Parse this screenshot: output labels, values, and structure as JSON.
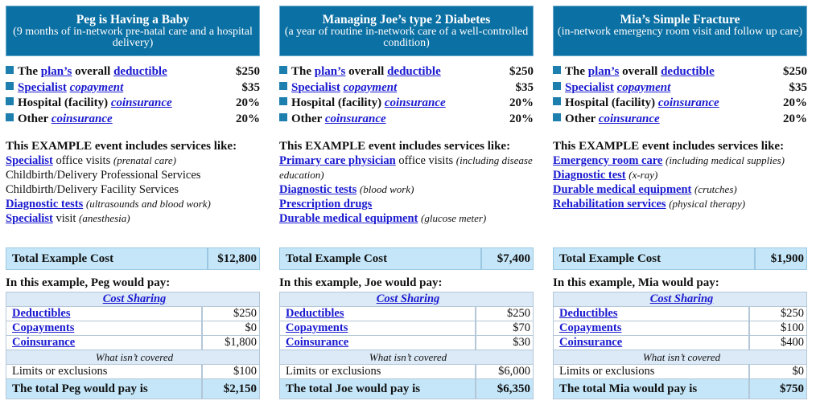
{
  "colors": {
    "header": "#0b70a3",
    "total_bg": "#c4e6f8",
    "subheader_bg": "#dce9f6",
    "link": "#1a1ad0"
  },
  "columns": [
    {
      "title": "Peg is Having a Baby",
      "subtitle": "(9 months of in-network pre-natal care and a hospital delivery)",
      "plan": {
        "deductible": "$250",
        "specialist_copay": "$35",
        "hospital_coins": "20%",
        "other_coins": "20%"
      },
      "services": [
        {
          "link": "Specialist",
          "text": " office visits ",
          "note": "(prenatal care)"
        },
        {
          "link": "",
          "text": "Childbirth/Delivery Professional Services",
          "note": ""
        },
        {
          "link": "",
          "text": "Childbirth/Delivery Facility Services",
          "note": ""
        },
        {
          "link": "Diagnostic tests",
          "text": " ",
          "note": "(ultrasounds and blood work)"
        },
        {
          "link": "Specialist",
          "text": " visit ",
          "note": "(anesthesia)"
        }
      ],
      "total_cost": "$12,800",
      "pay_heading": "In this example, Peg would pay:",
      "deductibles": "$250",
      "copayments": "$0",
      "coinsurance": "$1,800",
      "limits": "$100",
      "total_label": "The total Peg would pay is",
      "total_pay": "$2,150"
    },
    {
      "title": "Managing Joe’s type 2 Diabetes",
      "subtitle": "(a year of routine in-network care of a well-controlled condition)",
      "plan": {
        "deductible": "$250",
        "specialist_copay": "$35",
        "hospital_coins": "20%",
        "other_coins": "20%"
      },
      "services": [
        {
          "link": "Primary care physician",
          "text": " office visits ",
          "note": "(including disease education)"
        },
        {
          "link": "Diagnostic tests",
          "text": " ",
          "note": "(blood work)"
        },
        {
          "link": "Prescription drugs",
          "text": "",
          "note": ""
        },
        {
          "link": "Durable medical equipment",
          "text": " ",
          "note": "(glucose meter)"
        }
      ],
      "total_cost": "$7,400",
      "pay_heading": "In this example, Joe would pay:",
      "deductibles": "$250",
      "copayments": "$70",
      "coinsurance": "$30",
      "limits": "$6,000",
      "total_label": "The total Joe would pay is",
      "total_pay": "$6,350"
    },
    {
      "title": "Mia’s Simple Fracture",
      "subtitle": "(in-network emergency room visit and follow up care)",
      "plan": {
        "deductible": "$250",
        "specialist_copay": "$35",
        "hospital_coins": "20%",
        "other_coins": "20%"
      },
      "services": [
        {
          "link": "Emergency room care",
          "text": " ",
          "note": "(including medical supplies)"
        },
        {
          "link": "Diagnostic test",
          "text": " ",
          "note": "(x-ray)"
        },
        {
          "link": "Durable medical equipment",
          "text": " ",
          "note": "(crutches)"
        },
        {
          "link": "Rehabilitation services",
          "text": " ",
          "note": "(physical therapy)"
        }
      ],
      "total_cost": "$1,900",
      "pay_heading": "In this example, Mia would pay:",
      "deductibles": "$250",
      "copayments": "$100",
      "coinsurance": "$400",
      "limits": "$0",
      "total_label": "The total Mia would pay is",
      "total_pay": "$750"
    }
  ],
  "labels": {
    "the": "The ",
    "plans": "plan’s",
    "overall": " overall ",
    "deductible": "deductible",
    "specialist": "Specialist",
    "copayment": "copayment",
    "hospital": "Hospital (facility) ",
    "coinsurance": "coinsurance",
    "other": "Other ",
    "event": "This EXAMPLE event includes services like:",
    "total_example_cost": "Total Example Cost",
    "cost_sharing": "Cost Sharing",
    "deductibles": "Deductibles",
    "copayments": "Copayments",
    "coinsurance_row": "Coinsurance",
    "not_covered": "What isn’t covered",
    "limits": "Limits or exclusions"
  }
}
